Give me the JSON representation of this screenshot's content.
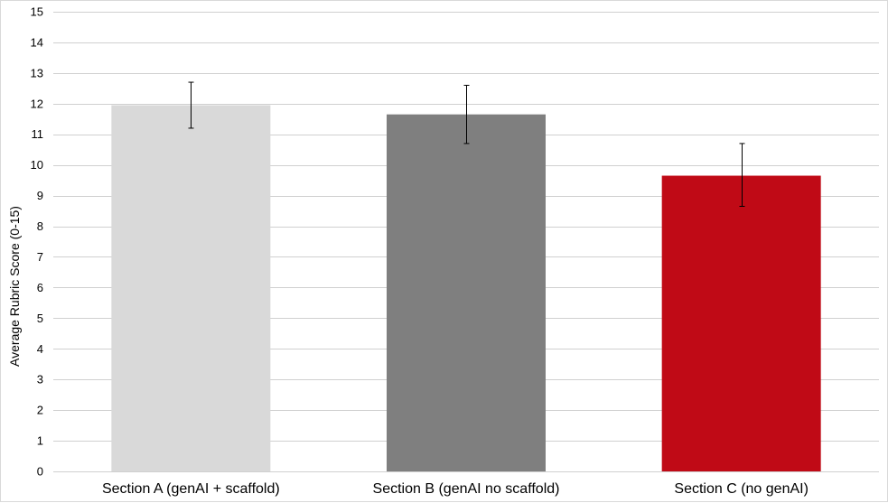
{
  "chart_data": {
    "type": "bar",
    "title": "",
    "xlabel": "",
    "ylabel": "Average Rubric Score (0-15)",
    "ylim": [
      0,
      15
    ],
    "yticks": [
      0,
      1,
      2,
      3,
      4,
      5,
      6,
      7,
      8,
      9,
      10,
      11,
      12,
      13,
      14,
      15
    ],
    "grid": true,
    "legend": "none",
    "categories": [
      "Section A (genAI + scaffold)",
      "Section B (genAI no scaffold)",
      "Section C (no genAI)"
    ],
    "values": [
      11.95,
      11.65,
      9.65
    ],
    "error_low": [
      11.2,
      10.7,
      8.65
    ],
    "error_high": [
      12.7,
      12.6,
      10.7
    ],
    "colors": [
      "#d9d9d9",
      "#7f7f7f",
      "#c00a16"
    ],
    "grid_color": "#d0d0d0"
  }
}
